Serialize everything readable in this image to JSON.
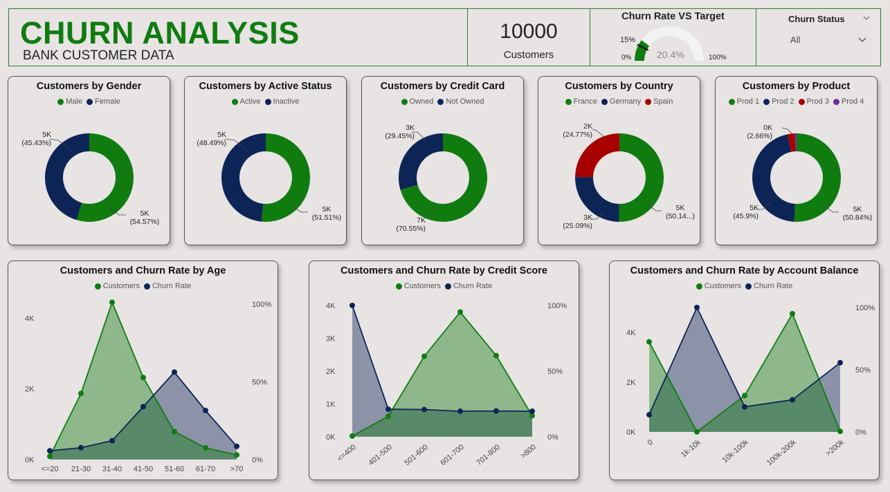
{
  "header": {
    "title": "CHURN ANALYSIS",
    "subtitle": "BANK CUSTOMER DATA",
    "kpi_value": "10000",
    "kpi_label": "Customers",
    "gauge": {
      "title": "Churn Rate VS Target",
      "value_label": "20.4%",
      "value": 0.204,
      "target_label": "15%",
      "min_label": "0%",
      "max_label": "100%"
    },
    "filter": {
      "title": "Churn Status",
      "value": "All"
    }
  },
  "colors": {
    "green": "#107c10",
    "navy": "#0d2456",
    "red": "#a80000",
    "purple": "#6b2fa0"
  },
  "donuts": [
    {
      "title": "Customers by Gender",
      "legend": [
        {
          "name": "Male",
          "color": "#107c10"
        },
        {
          "name": "Female",
          "color": "#0d2456"
        }
      ],
      "slices": [
        {
          "name": "Male",
          "pct": 54.57,
          "color": "#107c10"
        },
        {
          "name": "Female",
          "pct": 45.43,
          "color": "#0d2456"
        }
      ],
      "labels": [
        {
          "value": "5K",
          "pct": "(45.43%)"
        },
        {
          "value": "5K",
          "pct": "(54.57%)"
        }
      ]
    },
    {
      "title": "Customers by Active Status",
      "legend": [
        {
          "name": "Active",
          "color": "#107c10"
        },
        {
          "name": "Inactive",
          "color": "#0d2456"
        }
      ],
      "slices": [
        {
          "name": "Active",
          "pct": 51.51,
          "color": "#107c10"
        },
        {
          "name": "Inactive",
          "pct": 48.49,
          "color": "#0d2456"
        }
      ],
      "labels": [
        {
          "value": "5K",
          "pct": "(48.49%)"
        },
        {
          "value": "5K",
          "pct": "(51.51%)"
        }
      ]
    },
    {
      "title": "Customers by Credit Card",
      "legend": [
        {
          "name": "Owned",
          "color": "#107c10"
        },
        {
          "name": "Not Owned",
          "color": "#0d2456"
        }
      ],
      "slices": [
        {
          "name": "Owned",
          "pct": 70.55,
          "color": "#107c10"
        },
        {
          "name": "Not Owned",
          "pct": 29.45,
          "color": "#0d2456"
        }
      ],
      "labels": [
        {
          "value": "3K",
          "pct": "(29.45%)"
        },
        {
          "value": "7K",
          "pct": "(70.55%)"
        }
      ]
    },
    {
      "title": "Customers by Country",
      "legend": [
        {
          "name": "France",
          "color": "#107c10"
        },
        {
          "name": "Germany",
          "color": "#0d2456"
        },
        {
          "name": "Spain",
          "color": "#a80000"
        }
      ],
      "slices": [
        {
          "name": "France",
          "pct": 50.14,
          "color": "#107c10"
        },
        {
          "name": "Germany",
          "pct": 25.09,
          "color": "#0d2456"
        },
        {
          "name": "Spain",
          "pct": 24.77,
          "color": "#a80000"
        }
      ],
      "labels": [
        {
          "value": "2K",
          "pct": "(24.77%)"
        },
        {
          "value": "3K",
          "pct": "(25.09%)"
        },
        {
          "value": "5K",
          "pct": "(50.14...)"
        }
      ]
    },
    {
      "title": "Customers by Product",
      "legend": [
        {
          "name": "Prod 1",
          "color": "#107c10"
        },
        {
          "name": "Prod 2",
          "color": "#0d2456"
        },
        {
          "name": "Prod 3",
          "color": "#a80000"
        },
        {
          "name": "Prod 4",
          "color": "#6b2fa0"
        }
      ],
      "slices": [
        {
          "name": "Prod 1",
          "pct": 50.84,
          "color": "#107c10"
        },
        {
          "name": "Prod 2",
          "pct": 45.9,
          "color": "#0d2456"
        },
        {
          "name": "Prod 3",
          "pct": 2.66,
          "color": "#a80000"
        },
        {
          "name": "Prod 4",
          "pct": 0.6,
          "color": "#6b2fa0"
        }
      ],
      "labels": [
        {
          "value": "0K",
          "pct": "(2.66%)"
        },
        {
          "value": "5K",
          "pct": "(45.9%)"
        },
        {
          "value": "5K",
          "pct": "(50.84%)"
        }
      ]
    }
  ],
  "chart_data": [
    {
      "type": "area",
      "title": "Customers and Churn Rate by Age",
      "legend": [
        "Customers",
        "Churn Rate"
      ],
      "categories": [
        "<=20",
        "21-30",
        "31-40",
        "41-50",
        "51-60",
        "61-70",
        ">70"
      ],
      "series": [
        {
          "name": "Customers",
          "axis": "left",
          "values": [
            90,
            1870,
            4450,
            2320,
            790,
            330,
            130
          ]
        },
        {
          "name": "Churn Rate",
          "axis": "right",
          "values": [
            5.6,
            7.6,
            12.1,
            34.0,
            56.2,
            31.5,
            8.5
          ]
        }
      ],
      "y_left": {
        "ticks": [
          "0K",
          "2K",
          "4K"
        ],
        "max": 4400
      },
      "y_right": {
        "ticks": [
          "0%",
          "50%",
          "100%"
        ],
        "max": 100
      }
    },
    {
      "type": "area",
      "title": "Customers and Churn Rate by Credit Score",
      "legend": [
        "Customers",
        "Churn Rate"
      ],
      "categories": [
        "<=400",
        "401-500",
        "501-600",
        "601-700",
        "701-800",
        ">800"
      ],
      "series": [
        {
          "name": "Customers",
          "axis": "left",
          "values": [
            20,
            620,
            2450,
            3800,
            2470,
            640
          ]
        },
        {
          "name": "Churn Rate",
          "axis": "right",
          "values": [
            100,
            21.0,
            20.7,
            19.4,
            19.6,
            19.4
          ]
        }
      ],
      "y_left": {
        "ticks": [
          "0K",
          "1K",
          "2K",
          "3K",
          "4K"
        ],
        "max": 4000
      },
      "y_right": {
        "ticks": [
          "0%",
          "50%",
          "100%"
        ],
        "max": 100
      }
    },
    {
      "type": "area",
      "title": "Customers and Churn Rate by Account Balance",
      "legend": [
        "Customers",
        "Churn Rate"
      ],
      "categories": [
        "0",
        "1k-10k",
        "10k-100k",
        "100k-200k",
        ">200k"
      ],
      "series": [
        {
          "name": "Customers",
          "axis": "left",
          "values": [
            3620,
            2,
            1460,
            4750,
            20
          ]
        },
        {
          "name": "Churn Rate",
          "axis": "right",
          "values": [
            13.8,
            100,
            20.1,
            25.8,
            55.6
          ]
        }
      ],
      "y_left": {
        "ticks": [
          "0K",
          "2K",
          "4K"
        ],
        "max": 5000
      },
      "y_right": {
        "ticks": [
          "0%",
          "50%",
          "100%"
        ],
        "max": 100
      }
    }
  ]
}
